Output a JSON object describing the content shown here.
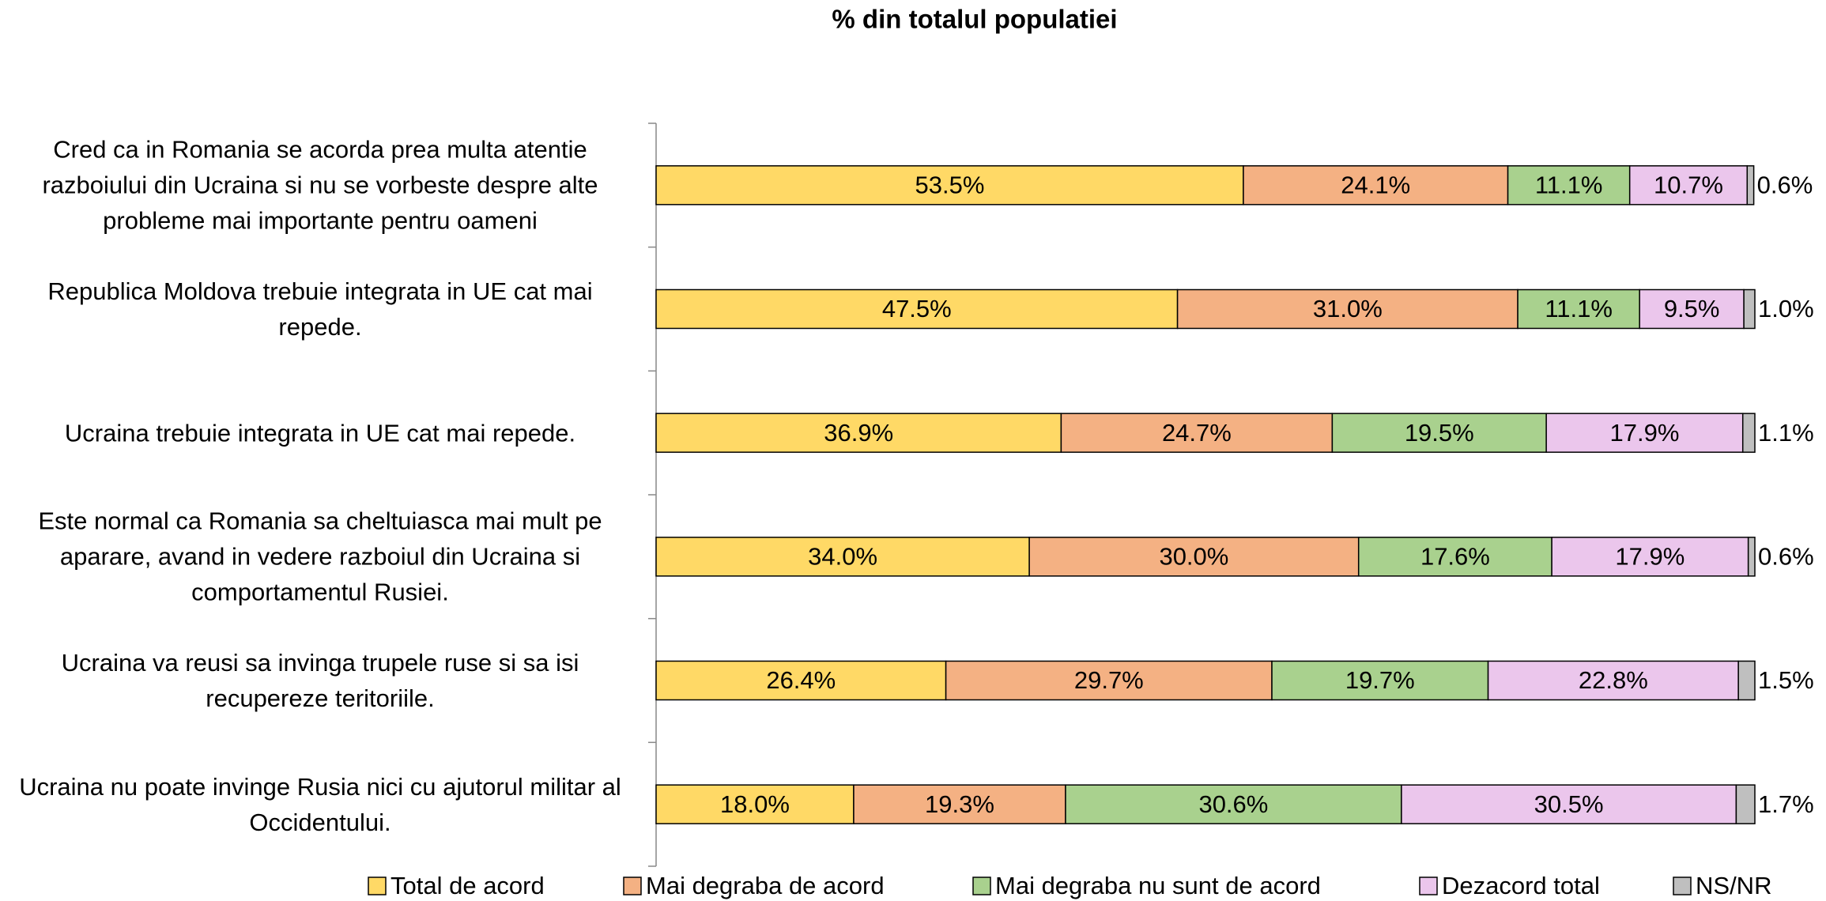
{
  "chart_data": {
    "type": "stacked-bar-horizontal",
    "title": "% din totalul populatiei",
    "categories": [
      "Cred ca in Romania se acorda prea multa atentie razboiului din Ucraina si nu se vorbeste despre alte probleme mai importante pentru oameni",
      "Republica Moldova trebuie integrata in UE cat mai repede.",
      "Ucraina trebuie integrata in UE cat mai repede.",
      "Este normal ca Romania sa cheltuiasca mai mult pe aparare, avand in vedere razboiul din Ucraina si comportamentul Rusiei.",
      "Ucraina va reusi sa invinga trupele ruse si sa isi recupereze teritoriile.",
      "Ucraina nu poate invinge Rusia nici cu ajutorul militar al Occidentului."
    ],
    "series": [
      {
        "name": "Total de acord",
        "color": "#FFD966",
        "values": [
          53.5,
          47.5,
          36.9,
          34.0,
          26.4,
          18.0
        ],
        "value_labels": [
          "53.5%",
          "47.5%",
          "36.9%",
          "34.0%",
          "26.4%",
          "18.0%"
        ]
      },
      {
        "name": "Mai degraba de acord",
        "color": "#F4B183",
        "values": [
          24.1,
          31.0,
          24.7,
          30.0,
          29.7,
          19.3
        ],
        "value_labels": [
          "24.1%",
          "31.0%",
          "24.7%",
          "30.0%",
          "29.7%",
          "19.3%"
        ]
      },
      {
        "name": "Mai degraba nu sunt de acord",
        "color": "#A9D18E",
        "values": [
          11.1,
          11.1,
          19.5,
          17.6,
          19.7,
          30.6
        ],
        "value_labels": [
          "11.1%",
          "11.1%",
          "19.5%",
          "17.6%",
          "19.7%",
          "30.6%"
        ]
      },
      {
        "name": "Dezacord total",
        "color": "#EBC6EC",
        "values": [
          10.7,
          9.5,
          17.9,
          17.9,
          22.8,
          30.5
        ],
        "value_labels": [
          "10.7%",
          "9.5%",
          "17.9%",
          "17.9%",
          "22.8%",
          "30.5%"
        ]
      },
      {
        "name": "NS/NR",
        "color": "#BFBFBF",
        "values": [
          0.6,
          1.0,
          1.1,
          0.6,
          1.5,
          1.7
        ],
        "value_labels": [
          "0.6%",
          "1.0%",
          "1.1%",
          "0.6%",
          "1.5%",
          "1.7%"
        ]
      }
    ]
  }
}
